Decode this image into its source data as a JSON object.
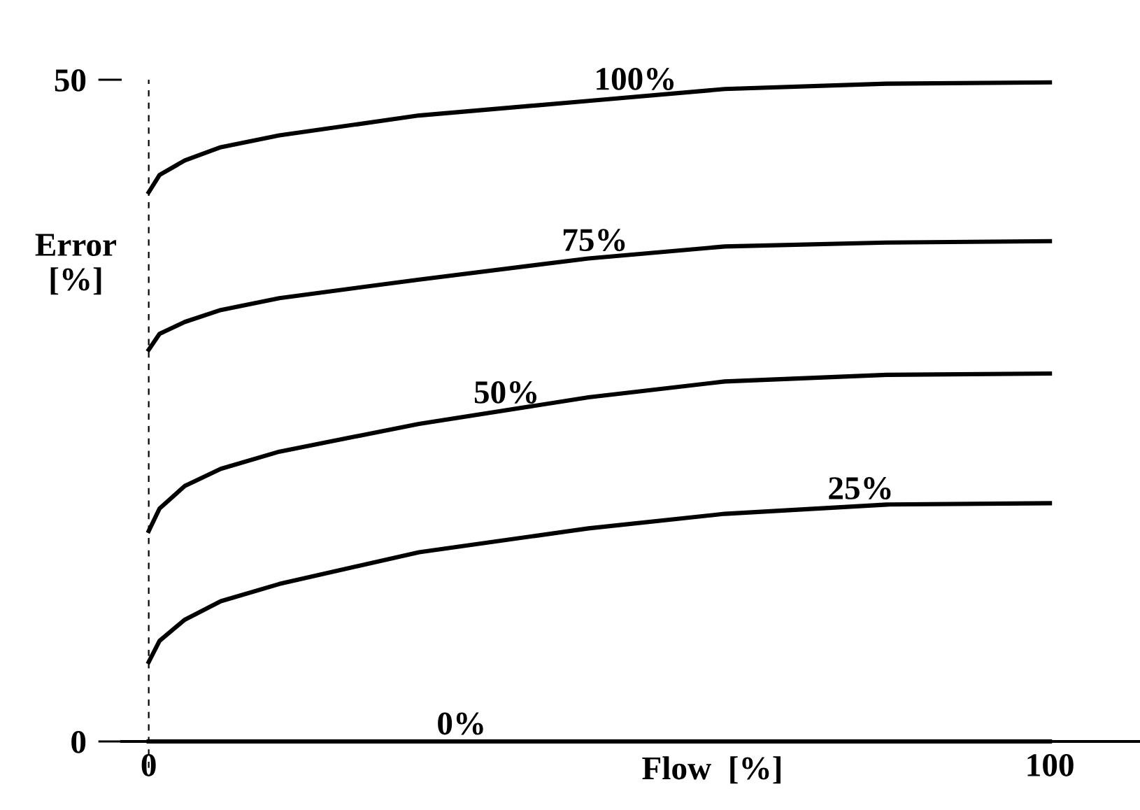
{
  "chart_data": {
    "type": "line",
    "xlabel": "Flow  [%]",
    "ylabel": "Error\n[%]",
    "xlim": [
      -3,
      110
    ],
    "ylim": [
      0,
      50
    ],
    "xticks": [
      0,
      100
    ],
    "yticks": [
      0,
      50
    ],
    "grid": false,
    "legend": false,
    "marker": "none",
    "line_style": "solid",
    "ref_lines": [
      {
        "axis": "x",
        "value": 0,
        "line_style": "dashed",
        "color": "#000000"
      }
    ],
    "series": [
      {
        "name": "100%",
        "color": "#000000",
        "x": [
          0,
          1.2,
          4,
          8,
          14.5,
          30,
          48.8,
          63.9,
          81.9,
          100
        ],
        "values": [
          41.5,
          42.8,
          43.9,
          44.9,
          45.8,
          47.3,
          48.4,
          49.3,
          49.7,
          49.8
        ]
      },
      {
        "name": "75%",
        "color": "#000000",
        "x": [
          0,
          1.2,
          4,
          8,
          14.5,
          30,
          48.8,
          63.9,
          81.9,
          100
        ],
        "values": [
          29.6,
          30.8,
          31.7,
          32.6,
          33.5,
          34.9,
          36.5,
          37.4,
          37.7,
          37.8
        ]
      },
      {
        "name": "50%",
        "color": "#000000",
        "x": [
          0,
          1.2,
          4,
          8,
          14.5,
          30,
          48.8,
          63.9,
          81.9,
          100
        ],
        "values": [
          15.9,
          17.6,
          19.3,
          20.6,
          21.9,
          24.0,
          26.0,
          27.2,
          27.7,
          27.8
        ]
      },
      {
        "name": "25%",
        "color": "#000000",
        "x": [
          0,
          1.2,
          4,
          8,
          14.5,
          30,
          48.8,
          63.9,
          81.9,
          100
        ],
        "values": [
          6.0,
          7.6,
          9.2,
          10.6,
          11.9,
          14.3,
          16.1,
          17.2,
          17.9,
          18.0
        ]
      },
      {
        "name": "0%",
        "color": "#000000",
        "x": [
          0,
          100
        ],
        "values": [
          0,
          0
        ]
      }
    ]
  }
}
